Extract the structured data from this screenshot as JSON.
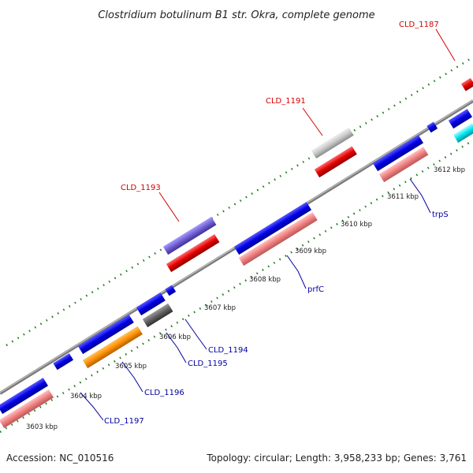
{
  "title": "Clostridium botulinum B1 str. Okra, complete genome",
  "footer": {
    "accession": "Accession: NC_010516",
    "summary": "Topology: circular; Length: 3,958,233 bp; Genes: 3,761"
  },
  "colors": {
    "backbone": "#8c8c8c",
    "tick": "#1e7a1e",
    "cds_forward": "#0000e6",
    "cds_reverse": "#e60000",
    "rna_pink": "#f08080",
    "label_red": "#d40000",
    "label_blue": "#0000a0"
  },
  "kbp_labels": [
    "3603 kbp",
    "3604 kbp",
    "3605 kbp",
    "3606 kbp",
    "3607 kbp",
    "3608 kbp",
    "3609 kbp",
    "3610 kbp",
    "3611 kbp",
    "3612 kbp"
  ],
  "gene_labels": {
    "cld_1187": "CLD_1187",
    "cld_1191": "CLD_1191",
    "cld_1193": "CLD_1193",
    "cld_1194": "CLD_1194",
    "cld_1195": "CLD_1195",
    "cld_1196": "CLD_1196",
    "cld_1197": "CLD_1197",
    "prfc": "prfC",
    "trps": "trpS"
  }
}
